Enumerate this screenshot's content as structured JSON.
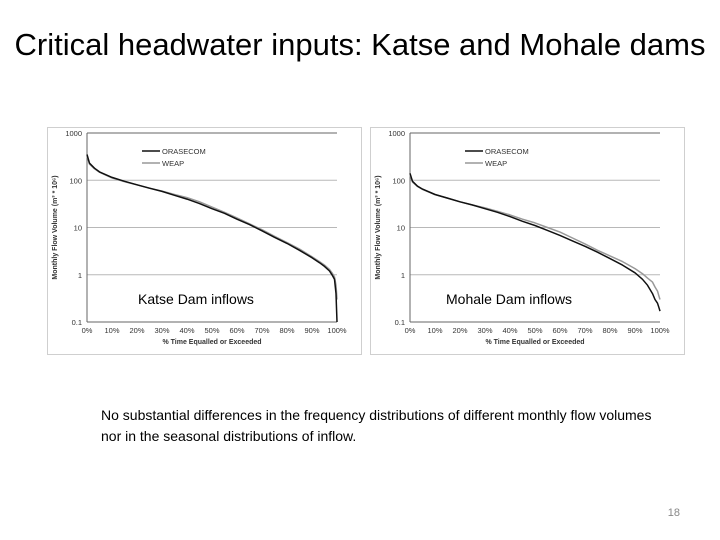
{
  "slide": {
    "title": "Critical headwater inputs: Katse and Mohale dams",
    "captions": [
      "Katse Dam inflows",
      "Mohale Dam inflows"
    ],
    "note": "No substantial differences in the frequency distributions of different monthly flow volumes nor in the seasonal distributions of inflow.",
    "page_number": "18"
  },
  "chart_data": [
    {
      "type": "line",
      "title": "",
      "caption": "Katse Dam inflows",
      "xlabel": "% Time Equalled or Exceeded",
      "ylabel": "Monthly Flow Volume (m³ * 10⁶)",
      "yscale": "log",
      "ylim": [
        0.1,
        1000
      ],
      "xlim": [
        0,
        100
      ],
      "x_ticks": [
        "0%",
        "10%",
        "20%",
        "30%",
        "40%",
        "50%",
        "60%",
        "70%",
        "80%",
        "90%",
        "100%"
      ],
      "y_ticks": [
        "0.1",
        "1",
        "10",
        "100",
        "1000"
      ],
      "legend_position": "top-left",
      "grid": "horizontal",
      "series": [
        {
          "name": "ORASECOM",
          "color": "#111111",
          "x": [
            0,
            1,
            3,
            5,
            10,
            15,
            20,
            25,
            30,
            35,
            40,
            45,
            50,
            55,
            60,
            65,
            70,
            75,
            80,
            85,
            90,
            93,
            95,
            97,
            98,
            99,
            99.6,
            100
          ],
          "y": [
            350,
            230,
            180,
            150,
            115,
            95,
            80,
            68,
            58,
            48,
            40,
            32,
            25,
            20,
            15,
            11.5,
            8.5,
            6.2,
            4.6,
            3.3,
            2.3,
            1.8,
            1.5,
            1.2,
            1.0,
            0.8,
            0.4,
            0.1
          ]
        },
        {
          "name": "WEAP",
          "color": "#999999",
          "x": [
            0,
            1,
            3,
            5,
            10,
            15,
            20,
            25,
            30,
            35,
            40,
            45,
            50,
            55,
            60,
            65,
            70,
            75,
            80,
            85,
            90,
            93,
            95,
            97,
            98,
            99,
            99.6,
            100
          ],
          "y": [
            330,
            220,
            175,
            148,
            112,
            93,
            80,
            68,
            59,
            50,
            43,
            35,
            27,
            21,
            16,
            12,
            9,
            6.5,
            4.8,
            3.5,
            2.4,
            1.9,
            1.6,
            1.3,
            1.1,
            0.9,
            0.6,
            0.3
          ]
        }
      ]
    },
    {
      "type": "line",
      "title": "",
      "caption": "Mohale Dam inflows",
      "xlabel": "% Time Equalled or Exceeded",
      "ylabel": "Monthly Flow Volume (m³ * 10⁶)",
      "yscale": "log",
      "ylim": [
        0.1,
        1000
      ],
      "xlim": [
        0,
        100
      ],
      "x_ticks": [
        "0%",
        "10%",
        "20%",
        "30%",
        "40%",
        "50%",
        "60%",
        "70%",
        "80%",
        "90%",
        "100%"
      ],
      "y_ticks": [
        "0.1",
        "1",
        "10",
        "100",
        "1000"
      ],
      "legend_position": "top-left",
      "grid": "horizontal",
      "series": [
        {
          "name": "ORASECOM",
          "color": "#111111",
          "x": [
            0,
            1,
            3,
            5,
            10,
            15,
            20,
            25,
            30,
            35,
            40,
            45,
            50,
            55,
            60,
            65,
            70,
            75,
            80,
            85,
            90,
            93,
            95,
            97,
            98,
            99,
            99.6,
            100
          ],
          "y": [
            140,
            95,
            75,
            65,
            50,
            42,
            35,
            30,
            25,
            21,
            17,
            13.5,
            11,
            8.7,
            6.8,
            5.2,
            4.0,
            3.0,
            2.2,
            1.6,
            1.1,
            0.8,
            0.6,
            0.4,
            0.3,
            0.25,
            0.2,
            0.17
          ]
        },
        {
          "name": "WEAP",
          "color": "#999999",
          "x": [
            0,
            1,
            3,
            5,
            10,
            15,
            20,
            25,
            30,
            35,
            40,
            45,
            50,
            55,
            60,
            65,
            70,
            75,
            80,
            85,
            90,
            93,
            95,
            97,
            98,
            99,
            99.6,
            100
          ],
          "y": [
            130,
            92,
            74,
            64,
            50,
            42,
            35,
            30,
            26,
            22,
            18.5,
            15,
            12.5,
            10,
            8,
            6,
            4.5,
            3.3,
            2.5,
            1.9,
            1.35,
            1.05,
            0.85,
            0.7,
            0.55,
            0.45,
            0.35,
            0.3
          ]
        }
      ]
    }
  ]
}
